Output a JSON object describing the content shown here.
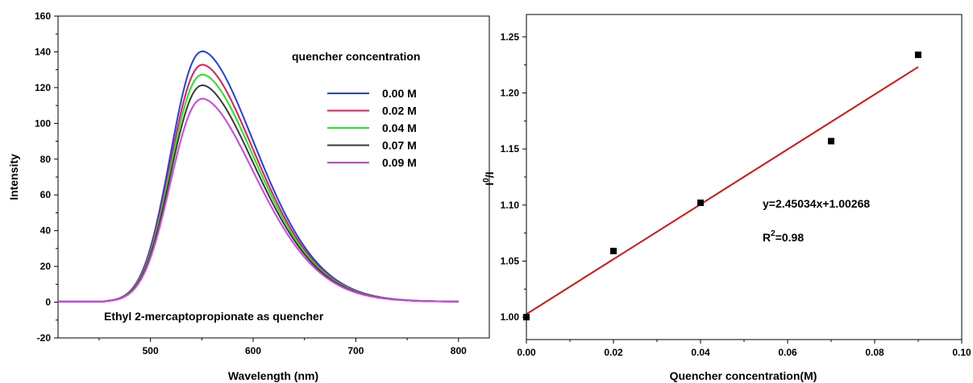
{
  "chart_data": [
    {
      "type": "line",
      "xlabel": "Wavelength (nm)",
      "ylabel": "Intensity",
      "xlim": [
        410,
        830
      ],
      "ylim": [
        -20,
        160
      ],
      "xticks": [
        500,
        600,
        700,
        800
      ],
      "yticks": [
        -20,
        0,
        20,
        40,
        60,
        80,
        100,
        120,
        140,
        160
      ],
      "legend_title": "quencher concentration",
      "legend_position": "top-right",
      "annotation": "Ethyl 2-mercaptopropionate as quencher",
      "peak_wavelength": 551,
      "x": [
        410,
        440,
        460,
        470,
        480,
        490,
        500,
        510,
        520,
        530,
        540,
        551,
        560,
        570,
        580,
        590,
        600,
        620,
        640,
        660,
        680,
        700,
        720,
        740,
        760,
        780,
        800
      ],
      "series": [
        {
          "name": "0.00 M",
          "color": "#1f3ff0",
          "peak": 140
        },
        {
          "name": "0.02 M",
          "color": "#e8185c",
          "peak": 132.5
        },
        {
          "name": "0.04 M",
          "color": "#1ee81e",
          "peak": 127
        },
        {
          "name": "0.07 M",
          "color": "#3a3a3a",
          "peak": 121
        },
        {
          "name": "0.09 M",
          "color": "#d63cf0",
          "peak": 113.5
        }
      ]
    },
    {
      "type": "scatter",
      "xlabel": "Quencher concentration(M)",
      "ylabel_main": "I",
      "ylabel_sup": "0",
      "ylabel_tail": "/I",
      "xlim": [
        0,
        0.1
      ],
      "ylim": [
        0.98,
        1.27
      ],
      "xticks": [
        "0.00",
        "0.02",
        "0.04",
        "0.06",
        "0.08",
        "0.10"
      ],
      "yticks": [
        "1.00",
        "1.05",
        "1.10",
        "1.15",
        "1.20",
        "1.25"
      ],
      "points": [
        {
          "x": 0.0,
          "y": 1.0
        },
        {
          "x": 0.02,
          "y": 1.059
        },
        {
          "x": 0.04,
          "y": 1.102
        },
        {
          "x": 0.07,
          "y": 1.157
        },
        {
          "x": 0.09,
          "y": 1.234
        }
      ],
      "fit": {
        "slope": 2.45034,
        "intercept": 1.00268,
        "x_range": [
          0,
          0.09
        ],
        "color": "#e01010"
      },
      "equation": "y=2.45034x+1.00268",
      "r2_main": "R",
      "r2_sup": "2",
      "r2_tail": "=0.98"
    }
  ]
}
